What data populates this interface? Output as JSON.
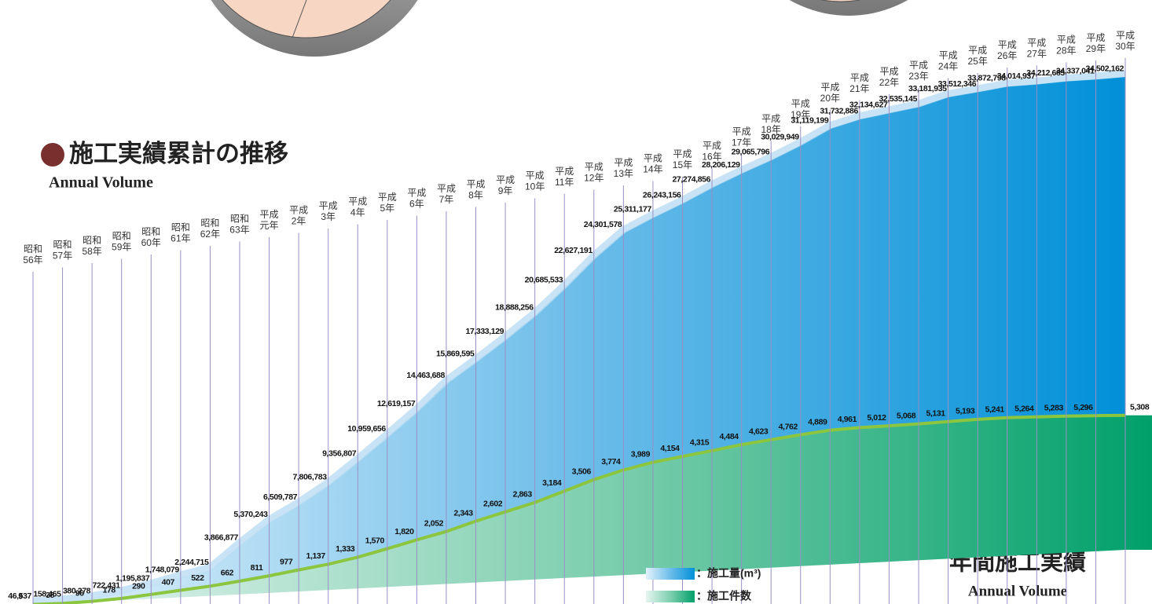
{
  "chart_data": {
    "type": "area",
    "title": "施工実績累計の推移",
    "subtitle": "Annual Volume",
    "annotation": "年間施工実績",
    "annotation_sub": "Annual Volume",
    "categories": [
      [
        "昭和",
        "56年"
      ],
      [
        "昭和",
        "57年"
      ],
      [
        "昭和",
        "58年"
      ],
      [
        "昭和",
        "59年"
      ],
      [
        "昭和",
        "60年"
      ],
      [
        "昭和",
        "61年"
      ],
      [
        "昭和",
        "62年"
      ],
      [
        "昭和",
        "63年"
      ],
      [
        "平成",
        "元年"
      ],
      [
        "平成",
        "2年"
      ],
      [
        "平成",
        "3年"
      ],
      [
        "平成",
        "4年"
      ],
      [
        "平成",
        "5年"
      ],
      [
        "平成",
        "6年"
      ],
      [
        "平成",
        "7年"
      ],
      [
        "平成",
        "8年"
      ],
      [
        "平成",
        "9年"
      ],
      [
        "平成",
        "10年"
      ],
      [
        "平成",
        "11年"
      ],
      [
        "平成",
        "12年"
      ],
      [
        "平成",
        "13年"
      ],
      [
        "平成",
        "14年"
      ],
      [
        "平成",
        "15年"
      ],
      [
        "平成",
        "16年"
      ],
      [
        "平成",
        "17年"
      ],
      [
        "平成",
        "18年"
      ],
      [
        "平成",
        "19年"
      ],
      [
        "平成",
        "20年"
      ],
      [
        "平成",
        "21年"
      ],
      [
        "平成",
        "22年"
      ],
      [
        "平成",
        "23年"
      ],
      [
        "平成",
        "24年"
      ],
      [
        "平成",
        "25年"
      ],
      [
        "平成",
        "26年"
      ],
      [
        "平成",
        "27年"
      ],
      [
        "平成",
        "28年"
      ],
      [
        "平成",
        "29年"
      ],
      [
        "平成",
        "30年"
      ]
    ],
    "ylim": [
      0,
      35000000
    ],
    "y2lim": [
      0,
      15000
    ],
    "series": [
      {
        "name": "：施工量(m³)",
        "color": "#0090d8",
        "values": [
          46537,
          158465,
          380278,
          722431,
          1195837,
          1748079,
          2244715,
          3866877,
          5370243,
          6509787,
          7806783,
          9356807,
          10959656,
          12619157,
          14463688,
          15869595,
          17333129,
          18888256,
          20685533,
          22627191,
          24301578,
          25311177,
          26243156,
          27274856,
          28206129,
          29065796,
          30029949,
          31119199,
          31732886,
          32134627,
          32535145,
          33181935,
          33512346,
          33872798,
          34014937,
          34212685,
          34337041,
          34502162
        ],
        "value_labels": [
          "46,537",
          "158,465",
          "380,278",
          "722,431",
          "1,195,837",
          "1,748,079",
          "2,244,715",
          "3,866,877",
          "5,370,243",
          "6,509,787",
          "7,806,783",
          "9,356,807",
          "10,959,656",
          "12,619,157",
          "14,463,688",
          "15,869,595",
          "17,333,129",
          "18,888,256",
          "20,685,533",
          "22,627,191",
          "24,301,578",
          "25,311,177",
          "26,243,156",
          "27,274,856",
          "28,206,129",
          "29,065,796",
          "30,029,949",
          "31,119,199",
          "31,732,886",
          "32,134,627",
          "32,535,145",
          "33,181,935",
          "33,512,346",
          "33,872,798",
          "34,014,937",
          "34,212,685",
          "34,337,041",
          "34,502,162"
        ]
      },
      {
        "name": "：施工件数",
        "color": "#00a06a",
        "axis": "y2",
        "values": [
          9,
          38,
          96,
          178,
          290,
          407,
          522,
          662,
          811,
          977,
          1137,
          1333,
          1570,
          1820,
          2052,
          2343,
          2602,
          2863,
          3184,
          3506,
          3774,
          3989,
          4154,
          4315,
          4484,
          4623,
          4762,
          4889,
          4961,
          5012,
          5068,
          5131,
          5193,
          5241,
          5264,
          5283,
          5296,
          5308
        ],
        "value_labels": [
          "9",
          "38",
          "96",
          "178",
          "290",
          "407",
          "522",
          "662",
          "811",
          "977",
          "1,137",
          "1,333",
          "1,570",
          "1,820",
          "2,052",
          "2,343",
          "2,602",
          "2,863",
          "3,184",
          "3,506",
          "3,774",
          "3,989",
          "4,154",
          "4,315",
          "4,484",
          "4,623",
          "4,762",
          "4,889",
          "4,961",
          "5,012",
          "5,068",
          "5,131",
          "5,193",
          "5,241",
          "5,264",
          "5,283",
          "5,296",
          "5,308"
        ]
      }
    ]
  }
}
